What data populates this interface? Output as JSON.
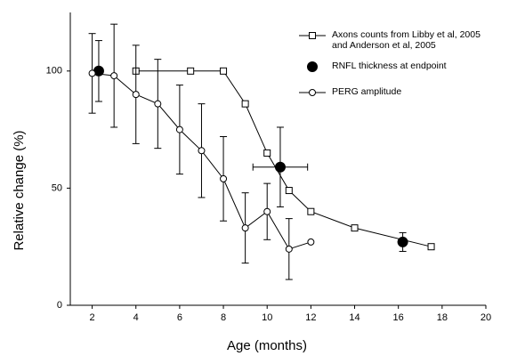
{
  "chart_data": {
    "type": "line",
    "x_label": "Age (months)",
    "y_label": "Relative change (%)",
    "xlim": [
      1,
      20
    ],
    "xticks": [
      2,
      4,
      6,
      8,
      10,
      12,
      14,
      16,
      18,
      20
    ],
    "ylim": [
      0,
      125
    ],
    "yticks": [
      0,
      50,
      100
    ],
    "legend": "upper right",
    "grid": false,
    "series": [
      {
        "name": "Axons counts from Libby et al, 2005 and Anderson et al, 2005",
        "color": "#000000",
        "marker": "square",
        "filled": false,
        "line": true,
        "x": [
          4,
          6.5,
          8,
          9,
          10,
          11,
          12,
          14,
          17.5
        ],
        "values": [
          100,
          100,
          100,
          86,
          65,
          49,
          40,
          33,
          25
        ]
      },
      {
        "name": "RNFL thickness at endpoint",
        "color": "#000000",
        "marker": "circle",
        "filled": true,
        "line": false,
        "x": [
          2.3,
          10.6,
          16.2
        ],
        "values": [
          100,
          59,
          27
        ],
        "y_err": [
          13,
          17,
          4
        ],
        "x_err": [
          null,
          1.25,
          null
        ]
      },
      {
        "name": "PERG amplitude",
        "color": "#000000",
        "marker": "circle",
        "filled": false,
        "line": true,
        "x": [
          2,
          3,
          4,
          5,
          6,
          7,
          8,
          9,
          10,
          11,
          12
        ],
        "values": [
          99,
          98,
          90,
          86,
          75,
          66,
          54,
          33,
          40,
          24,
          27
        ],
        "y_err": [
          17,
          22,
          21,
          19,
          19,
          20,
          18,
          15,
          12,
          13,
          null
        ]
      }
    ]
  }
}
